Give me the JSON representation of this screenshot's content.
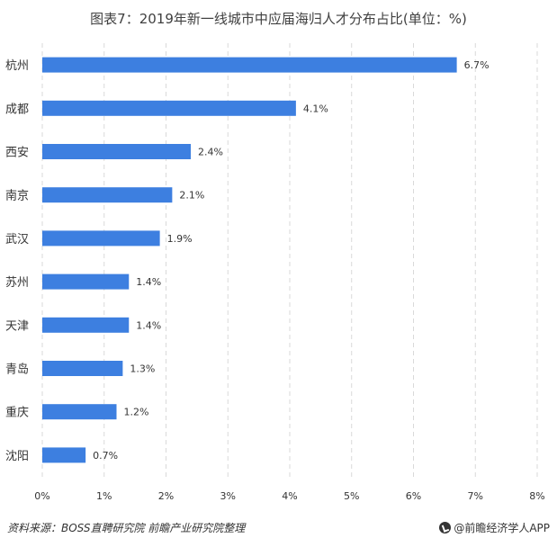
{
  "chart_data": {
    "type": "bar",
    "orientation": "horizontal",
    "title": "图表7：2019年新一线城市中应届海归人才分布占比(单位：%)",
    "categories": [
      "杭州",
      "成都",
      "西安",
      "南京",
      "武汉",
      "苏州",
      "天津",
      "青岛",
      "重庆",
      "沈阳"
    ],
    "values": [
      6.7,
      4.1,
      2.4,
      2.1,
      1.9,
      1.4,
      1.4,
      1.3,
      1.2,
      0.7
    ],
    "value_labels": [
      "6.7%",
      "4.1%",
      "2.4%",
      "2.1%",
      "1.9%",
      "1.4%",
      "1.4%",
      "1.3%",
      "1.2%",
      "0.7%"
    ],
    "xlim": [
      0,
      8
    ],
    "ticks": [
      0,
      1,
      2,
      3,
      4,
      5,
      6,
      7,
      8
    ],
    "tick_labels": [
      "0%",
      "1%",
      "2%",
      "3%",
      "4%",
      "5%",
      "6%",
      "7%",
      "8%"
    ],
    "grid": "vertical-dashed",
    "colors": {
      "bar": "#3d7fe0",
      "grid": "#d9d9d9",
      "text": "#333333"
    }
  },
  "footer": {
    "source": "资料来源：BOSS直聘研究院 前瞻产业研究院整理",
    "brand": "@前瞻经济学人APP"
  }
}
